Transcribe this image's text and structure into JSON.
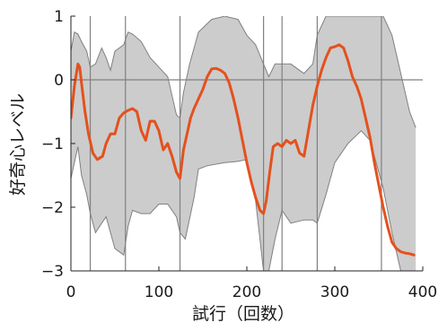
{
  "chart_data": {
    "type": "line",
    "xlabel": "試行（回数）",
    "ylabel": "好奇心レベル",
    "xlim": [
      0,
      400
    ],
    "ylim": [
      -3,
      1
    ],
    "x_ticks": [
      0,
      100,
      200,
      300,
      400
    ],
    "y_ticks": [
      1,
      0,
      -1,
      -2,
      -3
    ],
    "x_tick_labels": [
      "0",
      "100",
      "200",
      "300",
      "400"
    ],
    "y_tick_labels": [
      "1",
      "0",
      "−1",
      "−2",
      "−3"
    ],
    "grid": false,
    "reference_hline": 0,
    "event_lines_x": [
      22,
      62,
      124,
      219,
      240,
      280,
      353
    ],
    "colors": {
      "line": "#e4511e",
      "band_fill": "#cccccc",
      "band_edge": "#808080",
      "event_line": "#808080"
    },
    "series": [
      {
        "x": [
          0,
          4,
          8,
          10,
          12,
          16,
          20,
          25,
          30,
          36,
          40,
          45,
          50,
          55,
          60,
          65,
          70,
          75,
          80,
          85,
          90,
          95,
          100,
          105,
          110,
          115,
          120,
          124,
          128,
          132,
          136,
          140,
          145,
          150,
          155,
          160,
          165,
          170,
          175,
          180,
          185,
          190,
          195,
          200,
          205,
          210,
          215,
          219,
          222,
          226,
          230,
          235,
          240,
          245,
          250,
          255,
          260,
          265,
          270,
          275,
          280,
          285,
          290,
          295,
          300,
          305,
          310,
          315,
          320,
          325,
          330,
          335,
          340,
          345,
          350,
          355,
          360,
          365,
          370,
          375,
          380,
          385,
          390
        ],
        "values": [
          -0.6,
          -0.1,
          0.25,
          0.2,
          -0.05,
          -0.5,
          -0.85,
          -1.15,
          -1.25,
          -1.2,
          -1.0,
          -0.85,
          -0.85,
          -0.6,
          -0.52,
          -0.48,
          -0.45,
          -0.5,
          -0.8,
          -0.95,
          -0.65,
          -0.65,
          -0.8,
          -1.1,
          -1.0,
          -1.2,
          -1.45,
          -1.55,
          -1.1,
          -0.85,
          -0.6,
          -0.45,
          -0.3,
          -0.15,
          0.05,
          0.17,
          0.18,
          0.15,
          0.1,
          -0.05,
          -0.3,
          -0.6,
          -0.95,
          -1.3,
          -1.6,
          -1.85,
          -2.05,
          -2.1,
          -1.9,
          -1.45,
          -1.05,
          -1.0,
          -1.05,
          -0.95,
          -1.0,
          -0.95,
          -1.15,
          -1.2,
          -0.8,
          -0.4,
          -0.1,
          0.15,
          0.35,
          0.5,
          0.52,
          0.55,
          0.5,
          0.3,
          0.05,
          -0.1,
          -0.3,
          -0.6,
          -0.9,
          -1.3,
          -1.65,
          -2.0,
          -2.3,
          -2.55,
          -2.65,
          -2.7,
          -2.72,
          -2.73,
          -2.75
        ]
      }
    ],
    "band_upper": {
      "x": [
        0,
        4,
        8,
        12,
        18,
        22,
        28,
        35,
        40,
        45,
        50,
        55,
        60,
        65,
        70,
        80,
        90,
        100,
        110,
        120,
        124,
        128,
        135,
        145,
        160,
        175,
        190,
        200,
        210,
        219,
        225,
        232,
        240,
        250,
        265,
        275,
        280,
        290,
        300,
        315,
        330,
        345,
        355,
        365,
        375,
        385,
        392
      ],
      "values": [
        0.45,
        0.75,
        0.72,
        0.6,
        0.45,
        0.2,
        0.25,
        0.5,
        0.35,
        0.15,
        0.45,
        0.5,
        0.55,
        0.75,
        0.72,
        0.6,
        0.35,
        0.2,
        0.05,
        -0.55,
        -0.6,
        -0.2,
        0.25,
        0.75,
        0.95,
        1.0,
        0.95,
        0.7,
        0.55,
        0.25,
        0.05,
        0.25,
        0.25,
        0.25,
        0.1,
        0.25,
        0.7,
        1.0,
        1.0,
        1.0,
        1.0,
        1.0,
        1.0,
        0.7,
        0.1,
        -0.5,
        -0.75
      ]
    },
    "band_lower": {
      "x": [
        0,
        4,
        8,
        12,
        18,
        22,
        28,
        35,
        40,
        45,
        50,
        55,
        60,
        65,
        70,
        80,
        90,
        100,
        110,
        120,
        124,
        130,
        140,
        145,
        155,
        175,
        190,
        200,
        210,
        219,
        225,
        232,
        240,
        250,
        265,
        275,
        280,
        290,
        300,
        315,
        330,
        340,
        355,
        365,
        375,
        385,
        392
      ],
      "values": [
        -1.55,
        -1.3,
        -1.05,
        -1.5,
        -1.8,
        -2.1,
        -2.4,
        -2.25,
        -2.15,
        -2.4,
        -2.65,
        -2.7,
        -2.75,
        -2.3,
        -2.05,
        -2.1,
        -2.1,
        -1.95,
        -1.95,
        -2.15,
        -2.4,
        -2.5,
        -1.85,
        -1.4,
        -1.35,
        -1.3,
        -1.28,
        -1.25,
        -1.9,
        -3.0,
        -3.0,
        -2.5,
        -2.05,
        -2.25,
        -2.2,
        -2.2,
        -2.25,
        -1.8,
        -1.3,
        -1.0,
        -0.8,
        -0.95,
        -1.7,
        -2.4,
        -3.0,
        -3.0,
        -3.0
      ]
    }
  }
}
